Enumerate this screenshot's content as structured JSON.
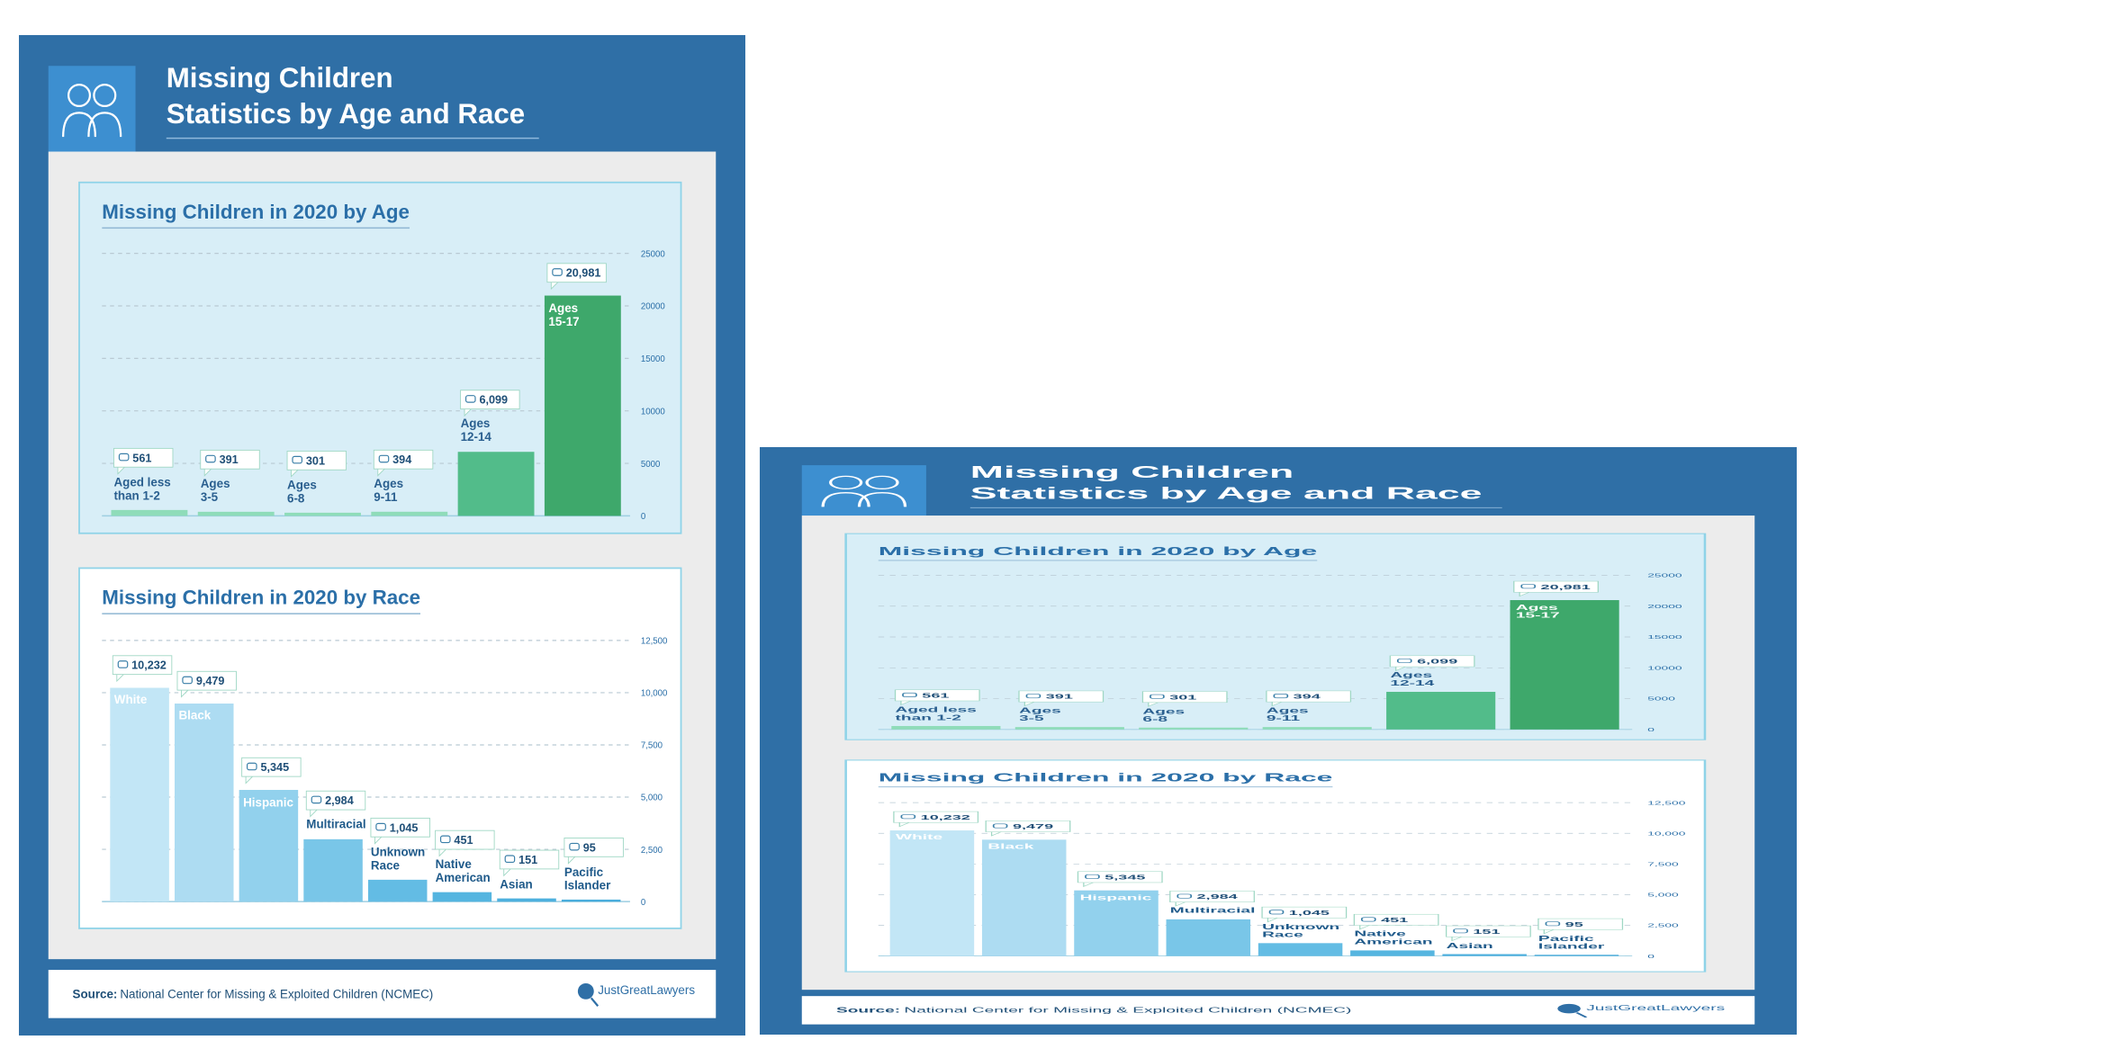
{
  "header": {
    "title_lines": [
      "Missing Children",
      "Statistics by Age and Race"
    ]
  },
  "chart_data": [
    {
      "type": "bar",
      "title": "Missing Children in 2020 by Age",
      "categories": [
        "Aged less\nthan 1-2",
        "Ages\n3-5",
        "Ages\n6-8",
        "Ages\n9-11",
        "Ages\n12-14",
        "Ages\n15-17"
      ],
      "values": [
        561,
        391,
        301,
        394,
        6099,
        20981
      ],
      "value_labels": [
        "561",
        "391",
        "301",
        "394",
        "6,099",
        "20,981"
      ],
      "colors": [
        "#8fdcb9",
        "#8fdcb9",
        "#8fdcb9",
        "#8fdcb9",
        "#52bc8a",
        "#3ea86b"
      ],
      "ylim": [
        0,
        25000
      ],
      "yticks": [
        0,
        5000,
        10000,
        15000,
        20000,
        25000
      ],
      "grid": true
    },
    {
      "type": "bar",
      "title": "Missing Children in 2020 by Race",
      "categories": [
        "White",
        "Black",
        "Hispanic",
        "Multiracial",
        "Unknown\nRace",
        "Native\nAmerican",
        "Asian",
        "Pacific\nIslander"
      ],
      "values": [
        10232,
        9479,
        5345,
        2984,
        1045,
        451,
        151,
        95
      ],
      "value_labels": [
        "10,232",
        "9,479",
        "5,345",
        "2,984",
        "1,045",
        "451",
        "151",
        "95"
      ],
      "colors": [
        "#c2e6f6",
        "#addcf2",
        "#92d1ed",
        "#79c6e8",
        "#63bce4",
        "#55b5e0",
        "#4eb0de",
        "#4aaddc"
      ],
      "ylim": [
        0,
        12500
      ],
      "yticks": [
        0,
        {
          "value": 2500,
          "label": "2,500"
        },
        {
          "value": 5000,
          "label": "5,000"
        },
        {
          "value": 7500,
          "label": "7,500"
        },
        {
          "value": 10000,
          "label": "10,000"
        },
        {
          "value": 12500,
          "label": "12,500"
        }
      ],
      "grid": true
    }
  ],
  "footer": {
    "source_label": "Source:",
    "source": "National Center for Missing & Exploited Children (NCMEC)",
    "brand": "JustGreatLawyers"
  }
}
